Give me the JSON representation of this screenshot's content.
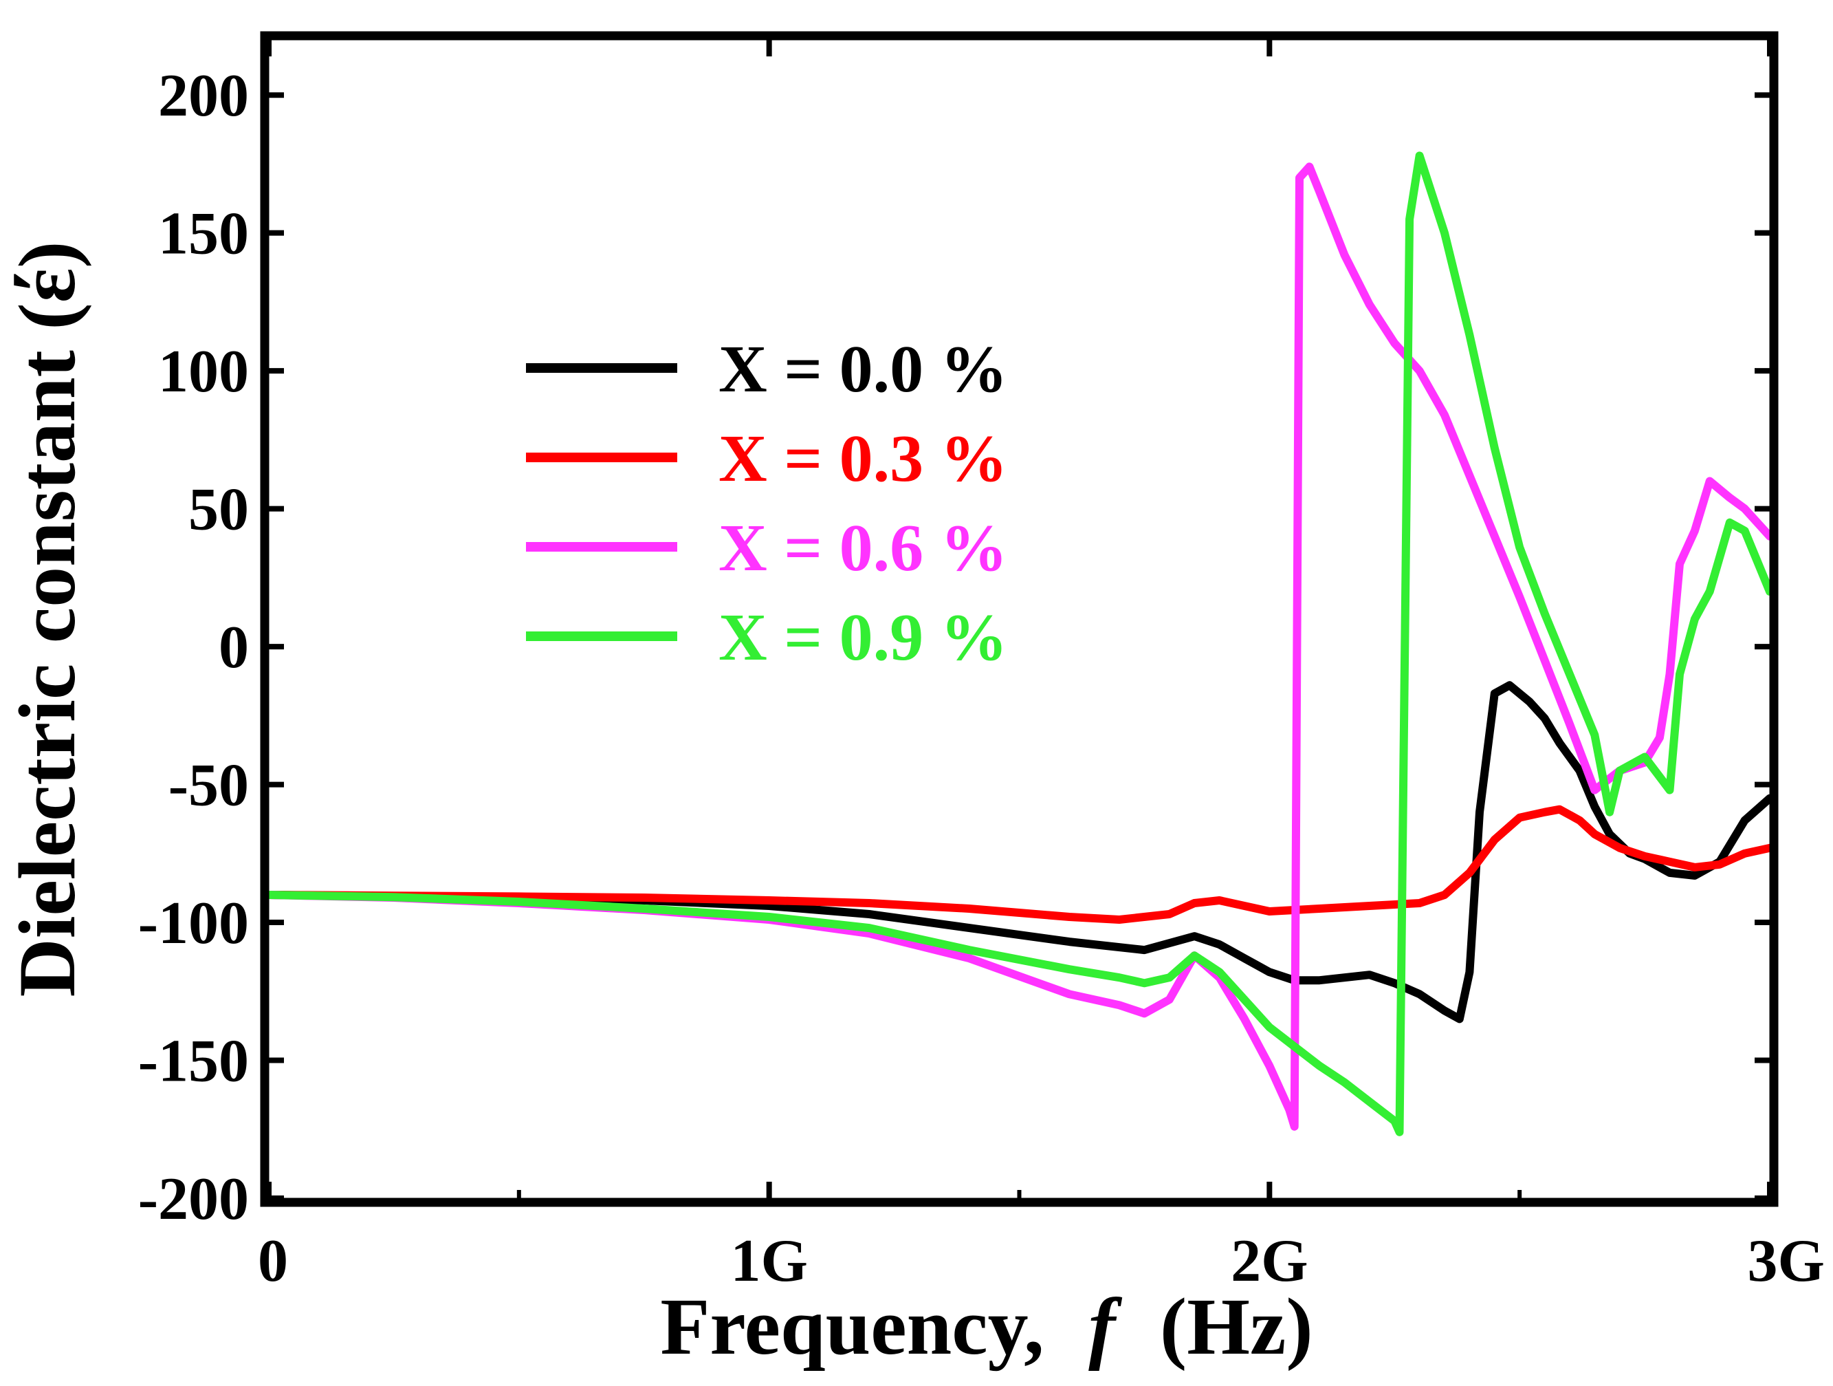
{
  "chart_data": {
    "type": "line",
    "title": "",
    "xlabel_main": "Frequency,",
    "xlabel_var": "f",
    "xlabel_unit": "(Hz)",
    "ylabel": "Dielectric constant (έ)",
    "xlim": [
      0,
      3
    ],
    "ylim": [
      -200,
      220
    ],
    "x_ticks": [
      0,
      1,
      2,
      3
    ],
    "x_tick_labels": [
      "0",
      "1G",
      "2G",
      "3G"
    ],
    "y_ticks": [
      200,
      150,
      100,
      50,
      0,
      -50,
      -100,
      -150,
      -200
    ],
    "y_tick_labels": [
      "200",
      "150",
      "100",
      "50",
      "0",
      "-50",
      "-100",
      "-150",
      "-200"
    ],
    "legend_position": "upper-left-center",
    "series": [
      {
        "name": "X = 0.0 %",
        "color": "#000000",
        "x": [
          0,
          0.25,
          0.5,
          0.75,
          1.0,
          1.2,
          1.4,
          1.6,
          1.75,
          1.85,
          1.9,
          1.95,
          2.0,
          2.05,
          2.1,
          2.15,
          2.2,
          2.25,
          2.3,
          2.35,
          2.38,
          2.4,
          2.42,
          2.45,
          2.48,
          2.52,
          2.55,
          2.58,
          2.62,
          2.65,
          2.68,
          2.72,
          2.75,
          2.8,
          2.85,
          2.9,
          2.95,
          3.0
        ],
        "y": [
          -90,
          -90.5,
          -91,
          -92,
          -94,
          -97,
          -102,
          -107,
          -110,
          -105,
          -108,
          -113,
          -118,
          -121,
          -121,
          -120,
          -119,
          -122,
          -126,
          -132,
          -135,
          -118,
          -60,
          -17,
          -14,
          -20,
          -26,
          -35,
          -45,
          -58,
          -68,
          -75,
          -77,
          -82,
          -83,
          -78,
          -63,
          -55
        ]
      },
      {
        "name": "X = 0.3 %",
        "color": "#ff0000",
        "x": [
          0,
          0.25,
          0.5,
          0.75,
          1.0,
          1.2,
          1.4,
          1.6,
          1.7,
          1.8,
          1.85,
          1.9,
          2.0,
          2.1,
          2.2,
          2.3,
          2.35,
          2.4,
          2.45,
          2.5,
          2.55,
          2.58,
          2.62,
          2.65,
          2.7,
          2.75,
          2.8,
          2.85,
          2.9,
          2.95,
          3.0
        ],
        "y": [
          -90,
          -90.3,
          -90.6,
          -91,
          -92,
          -93,
          -95,
          -98,
          -99,
          -97,
          -93,
          -92,
          -96,
          -95,
          -94,
          -93,
          -90,
          -82,
          -70,
          -62,
          -60,
          -59,
          -63,
          -68,
          -73,
          -76,
          -78,
          -80,
          -79,
          -75,
          -73
        ]
      },
      {
        "name": "X = 0.6 %",
        "color": "#ff33ff",
        "x": [
          0,
          0.25,
          0.5,
          0.75,
          1.0,
          1.2,
          1.4,
          1.6,
          1.7,
          1.75,
          1.8,
          1.85,
          1.9,
          1.95,
          2.0,
          2.04,
          2.05,
          2.06,
          2.08,
          2.1,
          2.15,
          2.2,
          2.25,
          2.3,
          2.35,
          2.4,
          2.45,
          2.5,
          2.55,
          2.6,
          2.65,
          2.7,
          2.75,
          2.78,
          2.8,
          2.82,
          2.85,
          2.88,
          2.92,
          2.95,
          3.0
        ],
        "y": [
          -90,
          -91,
          -93,
          -95.5,
          -99,
          -104,
          -113,
          -126,
          -130,
          -133,
          -128,
          -112,
          -120,
          -135,
          -152,
          -168,
          -174,
          170,
          174,
          165,
          142,
          124,
          110,
          100,
          84,
          62,
          40,
          18,
          -5,
          -28,
          -52,
          -45,
          -42,
          -33,
          -10,
          30,
          42,
          60,
          54,
          50,
          40
        ]
      },
      {
        "name": "X = 0.9 %",
        "color": "#33ee33",
        "x": [
          0,
          0.25,
          0.5,
          0.75,
          1.0,
          1.2,
          1.4,
          1.6,
          1.7,
          1.75,
          1.8,
          1.85,
          1.9,
          1.95,
          2.0,
          2.05,
          2.1,
          2.15,
          2.2,
          2.25,
          2.26,
          2.28,
          2.3,
          2.35,
          2.4,
          2.45,
          2.5,
          2.55,
          2.6,
          2.65,
          2.68,
          2.7,
          2.75,
          2.8,
          2.82,
          2.85,
          2.88,
          2.92,
          2.95,
          3.0
        ],
        "y": [
          -90,
          -90.8,
          -92.5,
          -95,
          -98,
          -102,
          -110,
          -117,
          -120,
          -122,
          -120,
          -112,
          -118,
          -128,
          -138,
          -145,
          -152,
          -158,
          -165,
          -172,
          -176,
          155,
          178,
          150,
          113,
          72,
          36,
          12,
          -10,
          -32,
          -60,
          -45,
          -40,
          -52,
          -10,
          10,
          20,
          45,
          42,
          20
        ]
      }
    ]
  }
}
